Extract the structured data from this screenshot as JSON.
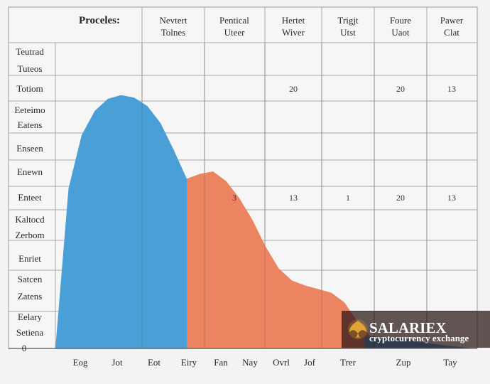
{
  "chart_data": {
    "type": "area",
    "title": "Proceles:",
    "column_headers": [
      "Nevtert Tolnes",
      "Pentical Uteer",
      "Hertet Wiver",
      "Trigjt Utst",
      "Foure Uaot",
      "Pawer Clat"
    ],
    "row_labels": [
      "Teutrad",
      "Tuteos",
      "Totiom",
      "Eeteimo",
      "Eatens",
      "Enseen",
      "Enewn",
      "Enteet",
      "Kaltocd",
      "Zerbom",
      "Enriet",
      "Satcen",
      "Zatens",
      "Eelary",
      "Setiena"
    ],
    "y_zero_label": "0",
    "x_labels": [
      "Eog",
      "Jot",
      "Eot",
      "Eiry",
      "Fan",
      "Nay",
      "Ovrl",
      "Jof",
      "Trer",
      "Zup",
      "Tay"
    ],
    "series": [
      {
        "name": "blue",
        "color": "#4a9fd6",
        "x": [
          0,
          0.5,
          1,
          1.5,
          2,
          2.5,
          3,
          3.5,
          4,
          4.5,
          5,
          5.5,
          6,
          6.5,
          7,
          7.5,
          8
        ],
        "values": [
          0,
          13.2,
          17.6,
          19.6,
          20.6,
          20.9,
          20.7,
          20.0,
          18.6,
          16.4,
          14.0,
          10.0,
          0,
          null,
          null,
          null,
          null
        ]
      },
      {
        "name": "orange",
        "color": "#ec8462",
        "x": [
          5,
          5.5,
          6,
          6.5,
          7,
          7.5,
          8,
          8.5,
          9,
          9.5,
          10,
          10.5,
          11,
          11.5,
          12
        ],
        "values": [
          14.0,
          14.4,
          14.6,
          13.8,
          12.4,
          10.6,
          8.4,
          6.6,
          5.6,
          5.2,
          4.9,
          4.6,
          3.8,
          2.2,
          1.0
        ]
      },
      {
        "name": "blue-tail",
        "color": "#4a9fd6",
        "x": [
          12,
          13,
          14,
          15,
          16
        ],
        "values": [
          1.0,
          0.9,
          0.5,
          0.2,
          0
        ]
      }
    ],
    "cell_values": [
      {
        "row": "Totiom",
        "column": "Hertet Wiver",
        "value": "20"
      },
      {
        "row": "Totiom",
        "column": "Foure Uaot",
        "value": "20"
      },
      {
        "row": "Totiom",
        "column": "Pawer Clat",
        "value": "13"
      },
      {
        "row": "Enteet",
        "column": "Pentical Uteer",
        "value": "3"
      },
      {
        "row": "Enteet",
        "column": "Hertet Wiver",
        "value": "13"
      },
      {
        "row": "Enteet",
        "column": "Trigjt Utst",
        "value": "1"
      },
      {
        "row": "Enteet",
        "column": "Foure Uaot",
        "value": "20"
      },
      {
        "row": "Enteet",
        "column": "Pawer Clat",
        "value": "13"
      }
    ],
    "ylim": [
      0,
      22
    ],
    "grid": true
  },
  "watermark": {
    "brand": "SALARIEX",
    "tagline": "cryptocurrency exchange",
    "emblem": "phoenix-icon",
    "accent": "#d8a030"
  }
}
